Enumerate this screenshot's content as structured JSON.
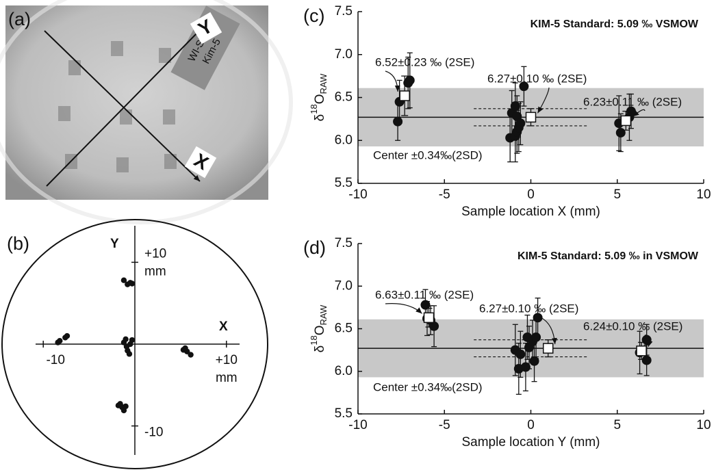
{
  "chart_data": [
    {
      "type": "scatter",
      "panel_label": "(c)",
      "title": "KIM-5 Standard: 5.09 ‰ VSMOW",
      "xlabel": "Sample location X (mm)",
      "ylabel": {
        "symbol": "δ",
        "superscript": "18",
        "base": "O",
        "subscript": "RAW"
      },
      "xlim": [
        -10,
        10
      ],
      "ylim": [
        5.5,
        7.5
      ],
      "xticks": [
        -10,
        -5,
        0,
        5,
        10
      ],
      "yticks": [
        5.5,
        {
          "value": 6,
          "label": "6.0"
        },
        6.5,
        {
          "value": 7,
          "label": "7.0"
        },
        7.5
      ],
      "color": "#111111",
      "band": {
        "center": 6.27,
        "half_width": 0.34,
        "color": "#c8c8c8"
      },
      "band_label": "Center ±0.34‰(2SD)",
      "mean_interval": {
        "low": 6.17,
        "high": 6.37,
        "x_start": -3.3,
        "x_end": 3.3
      },
      "points": {
        "x": [
          -7.7,
          -7.6,
          -7.1,
          -7.0,
          -1.2,
          -1.1,
          -0.9,
          -0.9,
          -0.8,
          -0.8,
          -0.7,
          -0.6,
          -0.4,
          5.1,
          5.2,
          5.8,
          5.7
        ],
        "values": [
          6.22,
          6.45,
          6.67,
          6.7,
          6.03,
          6.32,
          6.05,
          6.4,
          6.1,
          6.28,
          6.15,
          6.2,
          6.63,
          6.2,
          6.09,
          6.34,
          6.27
        ],
        "errors": [
          0.22,
          0.25,
          0.3,
          0.32,
          0.28,
          0.26,
          0.3,
          0.27,
          0.25,
          0.24,
          0.28,
          0.25,
          0.23,
          0.32,
          0.22,
          0.2,
          0.27
        ]
      },
      "means": {
        "x": [
          -7.3,
          0,
          5.5
        ],
        "values": [
          6.52,
          6.27,
          6.23
        ],
        "errors": [
          0.23,
          0.1,
          0.11
        ]
      },
      "annotations": [
        "6.52±0.23 ‰ (2SE)",
        "6.27±0.10 ‰ (2SE)",
        "6.23±0.11 ‰ (2SE)"
      ]
    },
    {
      "type": "scatter",
      "panel_label": "(d)",
      "title": "KIM-5 Standard: 5.09 ‰ in VSMOW",
      "xlabel": "Sample location Y (mm)",
      "ylabel": {
        "symbol": "δ",
        "superscript": "18",
        "base": "O",
        "subscript": "RAW"
      },
      "xlim": [
        -10,
        10
      ],
      "ylim": [
        5.5,
        7.5
      ],
      "xticks": [
        -10,
        -5,
        0,
        5,
        10
      ],
      "yticks": [
        5.5,
        {
          "value": 6,
          "label": "6.0"
        },
        6.5,
        {
          "value": 7,
          "label": "7.0"
        },
        7.5
      ],
      "color": "#111111",
      "band": {
        "center": 6.27,
        "half_width": 0.34,
        "color": "#c8c8c8"
      },
      "band_label": "Center ±0.34‰(2SD)",
      "mean_interval": {
        "low": 6.17,
        "high": 6.37,
        "x_start": -3.3,
        "x_end": 3.3
      },
      "points": {
        "x": [
          -6.1,
          -6.0,
          -5.6,
          -5.8,
          -0.9,
          -0.7,
          -0.6,
          -0.3,
          -0.2,
          -0.1,
          0.1,
          0.2,
          0.3,
          0.4,
          6.3,
          6.7,
          6.7
        ],
        "values": [
          6.78,
          6.62,
          6.53,
          6.6,
          6.25,
          6.03,
          6.2,
          6.05,
          6.4,
          6.28,
          6.35,
          6.12,
          6.4,
          6.63,
          6.22,
          6.37,
          6.13
        ],
        "errors": [
          0.18,
          0.2,
          0.24,
          0.17,
          0.3,
          0.3,
          0.27,
          0.28,
          0.26,
          0.25,
          0.25,
          0.24,
          0.25,
          0.23,
          0.25,
          0.18,
          0.18
        ]
      },
      "means": {
        "x": [
          -5.9,
          1.0,
          6.4
        ],
        "values": [
          6.63,
          6.27,
          6.24
        ],
        "errors": [
          0.11,
          0.1,
          0.1
        ]
      },
      "annotations": [
        "6.63±0.11 ‰ (2SE)",
        "6.27±0.10 ‰ (2SE)",
        "6.24±0.10 ‰ (2SE)"
      ]
    },
    {
      "type": "cross",
      "panel_label": "(b)",
      "x_name": "X",
      "y_name": "Y",
      "unit": "mm",
      "xlim": [
        -14.5,
        14.5
      ],
      "ylim": [
        -15.3,
        15.3
      ],
      "xticks": [
        {
          "value": -10,
          "label": "-10"
        },
        {
          "value": 10,
          "label": "+10"
        }
      ],
      "yticks": [
        {
          "value": 10,
          "label": "+10"
        },
        {
          "value": -10,
          "label": "-10"
        }
      ],
      "color": "#111111",
      "points": {
        "x": [
          -1.2,
          -0.8,
          -0.5,
          -0.3,
          -8.4,
          -8.2,
          -7.6,
          -7.4,
          -1.2,
          -0.9,
          -0.8,
          -0.6,
          -0.3,
          -1.0,
          -0.5,
          5.3,
          5.7,
          6.1,
          5.5,
          -1.8,
          -1.4,
          -1.2,
          -1.6,
          -1.0
        ],
        "y": [
          7.8,
          7.3,
          7.5,
          7.4,
          0.2,
          0.4,
          0.8,
          1.0,
          0.2,
          -0.3,
          -0.8,
          -1.2,
          0.5,
          0.6,
          0.0,
          -0.7,
          -0.9,
          -1.3,
          -0.5,
          -7.5,
          -7.7,
          -8.1,
          -7.3,
          -7.6
        ]
      }
    }
  ],
  "photo_panel": {
    "panel_label": "(a)",
    "y_marker": "Y",
    "x_marker": "X",
    "tape_text": [
      "WI-STD",
      "Kim-5"
    ]
  }
}
